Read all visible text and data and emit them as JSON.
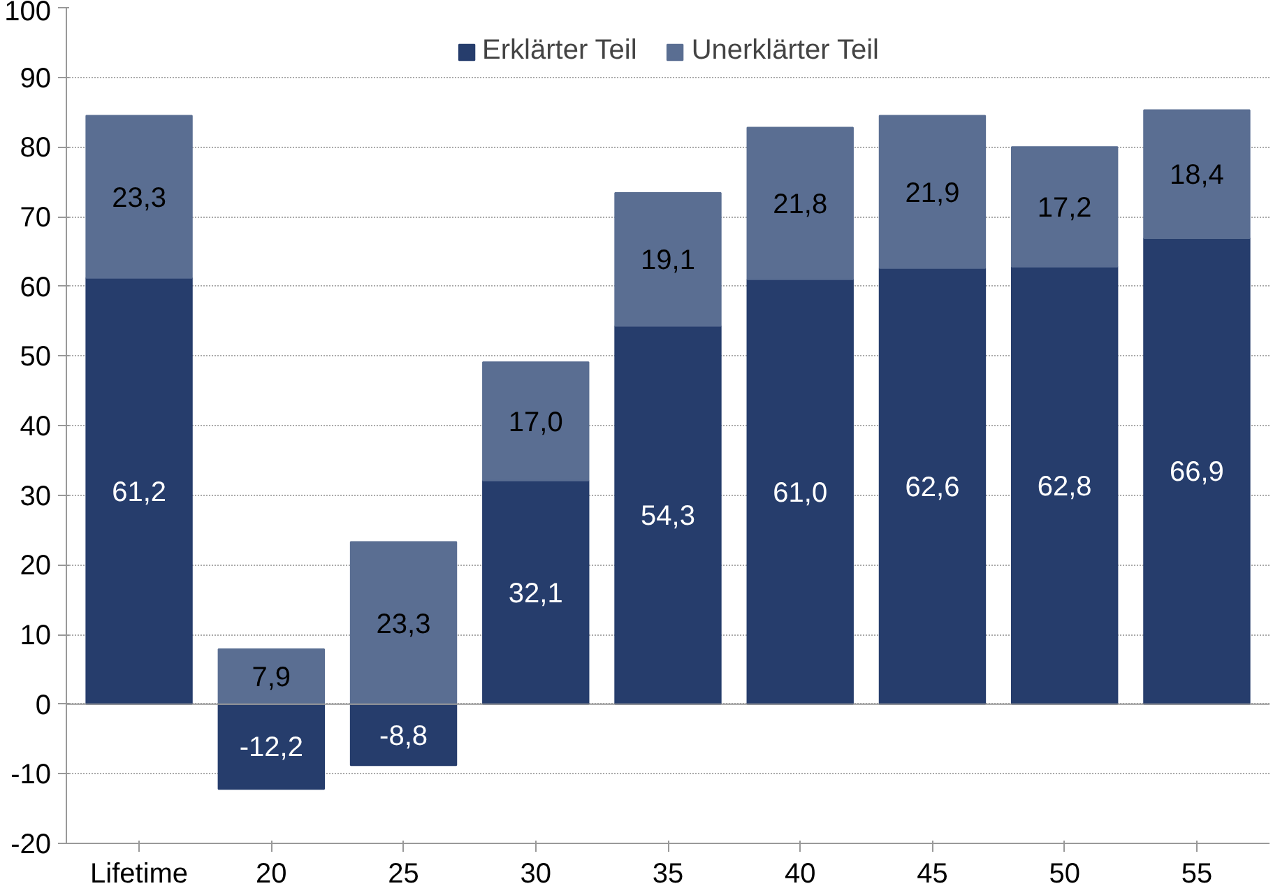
{
  "chart_data": {
    "type": "bar",
    "stacked": true,
    "categories": [
      "Lifetime",
      "20",
      "25",
      "30",
      "35",
      "40",
      "45",
      "50",
      "55"
    ],
    "series": [
      {
        "name": "Erklärter Teil",
        "color": "#263d6c",
        "values": [
          61.2,
          -12.2,
          -8.8,
          32.1,
          54.3,
          61.0,
          62.6,
          62.8,
          66.9
        ],
        "value_labels": [
          "61,2",
          "-12,2",
          "-8,8",
          "32,1",
          "54,3",
          "61,0",
          "62,6",
          "62,8",
          "66,9"
        ]
      },
      {
        "name": "Unerklärter Teil",
        "color": "#5a6e92",
        "values": [
          23.3,
          7.9,
          23.3,
          17.0,
          19.1,
          21.8,
          21.9,
          17.2,
          18.4
        ],
        "value_labels": [
          "23,3",
          "7,9",
          "23,3",
          "17,0",
          "19,1",
          "21,8",
          "21,9",
          "17,2",
          "18,4"
        ]
      }
    ],
    "ylim": [
      -20,
      100
    ],
    "yticks": [
      -20,
      -10,
      0,
      10,
      20,
      30,
      40,
      50,
      60,
      70,
      80,
      90,
      100
    ],
    "grid": "y",
    "legend": "top"
  }
}
